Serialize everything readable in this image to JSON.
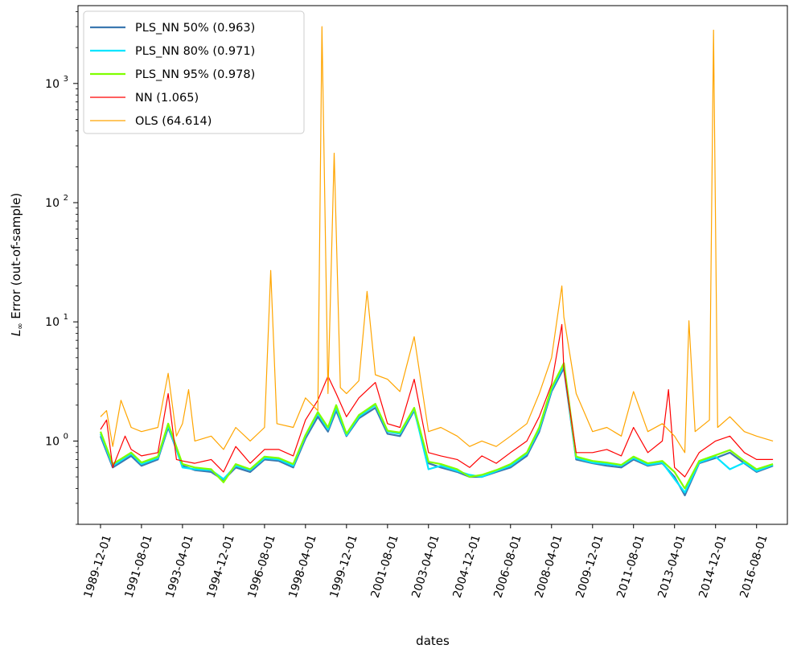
{
  "chart_data": {
    "type": "line",
    "title": "",
    "xlabel": "dates",
    "ylabel_prefix": "L",
    "ylabel_sub": "∞",
    "ylabel_rest": " Error (out-of-sample)",
    "yscale": "log",
    "ylim": [
      0.2,
      4500
    ],
    "xlim": [
      "1989-01-01",
      "2017-11-01"
    ],
    "x_ticks": [
      "1989-12-01",
      "1991-08-01",
      "1993-04-01",
      "1994-12-01",
      "1996-08-01",
      "1998-04-01",
      "1999-12-01",
      "2001-08-01",
      "2003-04-01",
      "2004-12-01",
      "2006-08-01",
      "2008-04-01",
      "2009-12-01",
      "2011-08-01",
      "2013-04-01",
      "2014-12-01",
      "2016-08-01"
    ],
    "y_ticks": [
      {
        "value": 1,
        "base": "10",
        "exp": "0"
      },
      {
        "value": 10,
        "base": "10",
        "exp": "1"
      },
      {
        "value": 100,
        "base": "10",
        "exp": "2"
      },
      {
        "value": 1000,
        "base": "10",
        "exp": "3"
      }
    ],
    "grid": false,
    "legend_position": "top-left",
    "series": [
      {
        "name": "PLS_NN 50% (0.963)",
        "color": "#3b78b0",
        "values": [
          [
            "1989-12-01",
            1.1
          ],
          [
            "1990-06-01",
            0.6
          ],
          [
            "1991-03-01",
            0.75
          ],
          [
            "1991-08-01",
            0.62
          ],
          [
            "1992-04-01",
            0.7
          ],
          [
            "1992-09-01",
            1.3
          ],
          [
            "1993-04-01",
            0.62
          ],
          [
            "1993-10-01",
            0.57
          ],
          [
            "1994-06-01",
            0.55
          ],
          [
            "1994-12-01",
            0.47
          ],
          [
            "1995-06-01",
            0.6
          ],
          [
            "1996-01-01",
            0.55
          ],
          [
            "1996-08-01",
            0.7
          ],
          [
            "1997-03-01",
            0.68
          ],
          [
            "1997-10-01",
            0.6
          ],
          [
            "1998-04-01",
            1.05
          ],
          [
            "1998-10-01",
            1.6
          ],
          [
            "1999-03-01",
            1.2
          ],
          [
            "1999-07-01",
            1.8
          ],
          [
            "1999-12-01",
            1.1
          ],
          [
            "2000-06-01",
            1.55
          ],
          [
            "2001-02-01",
            1.9
          ],
          [
            "2001-08-01",
            1.15
          ],
          [
            "2002-02-01",
            1.1
          ],
          [
            "2002-09-01",
            1.8
          ],
          [
            "2003-04-01",
            0.65
          ],
          [
            "2003-10-01",
            0.6
          ],
          [
            "2004-06-01",
            0.55
          ],
          [
            "2004-12-01",
            0.5
          ],
          [
            "2005-06-01",
            0.5
          ],
          [
            "2006-01-01",
            0.55
          ],
          [
            "2006-08-01",
            0.6
          ],
          [
            "2007-04-01",
            0.75
          ],
          [
            "2007-10-01",
            1.2
          ],
          [
            "2008-04-01",
            2.6
          ],
          [
            "2008-10-01",
            4.1
          ],
          [
            "2009-04-01",
            0.7
          ],
          [
            "2009-12-01",
            0.65
          ],
          [
            "2010-07-01",
            0.62
          ],
          [
            "2011-02-01",
            0.6
          ],
          [
            "2011-08-01",
            0.7
          ],
          [
            "2012-03-01",
            0.62
          ],
          [
            "2012-10-01",
            0.65
          ],
          [
            "2013-04-01",
            0.5
          ],
          [
            "2013-09-01",
            0.35
          ],
          [
            "2014-04-01",
            0.65
          ],
          [
            "2014-12-01",
            0.72
          ],
          [
            "2015-07-01",
            0.8
          ],
          [
            "2016-02-01",
            0.65
          ],
          [
            "2016-08-01",
            0.55
          ],
          [
            "2017-04-01",
            0.62
          ]
        ]
      },
      {
        "name": "PLS_NN 80% (0.971)",
        "color": "#00e5ff",
        "values": [
          [
            "1989-12-01",
            1.15
          ],
          [
            "1990-06-01",
            0.62
          ],
          [
            "1991-03-01",
            0.78
          ],
          [
            "1991-08-01",
            0.64
          ],
          [
            "1992-04-01",
            0.72
          ],
          [
            "1992-09-01",
            1.35
          ],
          [
            "1993-04-01",
            0.6
          ],
          [
            "1993-10-01",
            0.58
          ],
          [
            "1994-06-01",
            0.57
          ],
          [
            "1994-12-01",
            0.48
          ],
          [
            "1995-06-01",
            0.62
          ],
          [
            "1996-01-01",
            0.57
          ],
          [
            "1996-08-01",
            0.72
          ],
          [
            "1997-03-01",
            0.7
          ],
          [
            "1997-10-01",
            0.62
          ],
          [
            "1998-04-01",
            1.1
          ],
          [
            "1998-10-01",
            1.7
          ],
          [
            "1999-03-01",
            1.25
          ],
          [
            "1999-07-01",
            1.9
          ],
          [
            "1999-12-01",
            1.12
          ],
          [
            "2000-06-01",
            1.6
          ],
          [
            "2001-02-01",
            2.0
          ],
          [
            "2001-08-01",
            1.2
          ],
          [
            "2002-02-01",
            1.15
          ],
          [
            "2002-09-01",
            1.85
          ],
          [
            "2003-04-01",
            0.58
          ],
          [
            "2003-10-01",
            0.62
          ],
          [
            "2004-06-01",
            0.56
          ],
          [
            "2004-12-01",
            0.52
          ],
          [
            "2005-06-01",
            0.5
          ],
          [
            "2006-01-01",
            0.56
          ],
          [
            "2006-08-01",
            0.62
          ],
          [
            "2007-04-01",
            0.78
          ],
          [
            "2007-10-01",
            1.25
          ],
          [
            "2008-04-01",
            2.7
          ],
          [
            "2008-10-01",
            4.3
          ],
          [
            "2009-04-01",
            0.72
          ],
          [
            "2009-12-01",
            0.66
          ],
          [
            "2010-07-01",
            0.64
          ],
          [
            "2011-02-01",
            0.62
          ],
          [
            "2011-08-01",
            0.72
          ],
          [
            "2012-03-01",
            0.63
          ],
          [
            "2012-10-01",
            0.66
          ],
          [
            "2013-04-01",
            0.48
          ],
          [
            "2013-09-01",
            0.37
          ],
          [
            "2014-04-01",
            0.66
          ],
          [
            "2014-12-01",
            0.74
          ],
          [
            "2015-07-01",
            0.58
          ],
          [
            "2016-02-01",
            0.66
          ],
          [
            "2016-08-01",
            0.56
          ],
          [
            "2017-04-01",
            0.63
          ]
        ]
      },
      {
        "name": "PLS_NN 95% (0.978)",
        "color": "#7fff00",
        "values": [
          [
            "1989-12-01",
            1.2
          ],
          [
            "1990-06-01",
            0.64
          ],
          [
            "1991-03-01",
            0.8
          ],
          [
            "1991-08-01",
            0.66
          ],
          [
            "1992-04-01",
            0.74
          ],
          [
            "1992-09-01",
            1.4
          ],
          [
            "1993-04-01",
            0.64
          ],
          [
            "1993-10-01",
            0.6
          ],
          [
            "1994-06-01",
            0.58
          ],
          [
            "1994-12-01",
            0.45
          ],
          [
            "1995-06-01",
            0.64
          ],
          [
            "1996-01-01",
            0.58
          ],
          [
            "1996-08-01",
            0.74
          ],
          [
            "1997-03-01",
            0.72
          ],
          [
            "1997-10-01",
            0.64
          ],
          [
            "1998-04-01",
            1.12
          ],
          [
            "1998-10-01",
            1.75
          ],
          [
            "1999-03-01",
            1.3
          ],
          [
            "1999-07-01",
            2.0
          ],
          [
            "1999-12-01",
            1.15
          ],
          [
            "2000-06-01",
            1.65
          ],
          [
            "2001-02-01",
            2.05
          ],
          [
            "2001-08-01",
            1.22
          ],
          [
            "2002-02-01",
            1.18
          ],
          [
            "2002-09-01",
            1.9
          ],
          [
            "2003-04-01",
            0.67
          ],
          [
            "2003-10-01",
            0.64
          ],
          [
            "2004-06-01",
            0.58
          ],
          [
            "2004-12-01",
            0.5
          ],
          [
            "2005-06-01",
            0.52
          ],
          [
            "2006-01-01",
            0.57
          ],
          [
            "2006-08-01",
            0.64
          ],
          [
            "2007-04-01",
            0.8
          ],
          [
            "2007-10-01",
            1.3
          ],
          [
            "2008-04-01",
            2.8
          ],
          [
            "2008-10-01",
            4.5
          ],
          [
            "2009-04-01",
            0.74
          ],
          [
            "2009-12-01",
            0.68
          ],
          [
            "2010-07-01",
            0.66
          ],
          [
            "2011-02-01",
            0.63
          ],
          [
            "2011-08-01",
            0.74
          ],
          [
            "2012-03-01",
            0.65
          ],
          [
            "2012-10-01",
            0.68
          ],
          [
            "2013-04-01",
            0.55
          ],
          [
            "2013-09-01",
            0.4
          ],
          [
            "2014-04-01",
            0.68
          ],
          [
            "2014-12-01",
            0.76
          ],
          [
            "2015-07-01",
            0.84
          ],
          [
            "2016-02-01",
            0.68
          ],
          [
            "2016-08-01",
            0.58
          ],
          [
            "2017-04-01",
            0.64
          ]
        ]
      },
      {
        "name": "NN (1.065)",
        "color": "#ff0000",
        "values": [
          [
            "1989-12-01",
            1.25
          ],
          [
            "1990-03-01",
            1.5
          ],
          [
            "1990-06-01",
            0.6
          ],
          [
            "1990-12-01",
            1.1
          ],
          [
            "1991-03-01",
            0.85
          ],
          [
            "1991-08-01",
            0.75
          ],
          [
            "1992-04-01",
            0.8
          ],
          [
            "1992-09-01",
            2.5
          ],
          [
            "1993-01-01",
            0.7
          ],
          [
            "1993-04-01",
            0.68
          ],
          [
            "1993-10-01",
            0.65
          ],
          [
            "1994-06-01",
            0.7
          ],
          [
            "1994-12-01",
            0.55
          ],
          [
            "1995-06-01",
            0.9
          ],
          [
            "1996-01-01",
            0.65
          ],
          [
            "1996-08-01",
            0.85
          ],
          [
            "1997-03-01",
            0.85
          ],
          [
            "1997-10-01",
            0.75
          ],
          [
            "1998-04-01",
            1.5
          ],
          [
            "1998-10-01",
            2.2
          ],
          [
            "1999-03-01",
            3.5
          ],
          [
            "1999-07-01",
            2.5
          ],
          [
            "1999-12-01",
            1.6
          ],
          [
            "2000-06-01",
            2.3
          ],
          [
            "2001-02-01",
            3.1
          ],
          [
            "2001-08-01",
            1.4
          ],
          [
            "2002-02-01",
            1.3
          ],
          [
            "2002-09-01",
            3.3
          ],
          [
            "2003-04-01",
            0.8
          ],
          [
            "2003-10-01",
            0.75
          ],
          [
            "2004-06-01",
            0.7
          ],
          [
            "2004-12-01",
            0.6
          ],
          [
            "2005-06-01",
            0.75
          ],
          [
            "2006-01-01",
            0.65
          ],
          [
            "2006-08-01",
            0.8
          ],
          [
            "2007-04-01",
            1.0
          ],
          [
            "2007-10-01",
            1.6
          ],
          [
            "2008-04-01",
            3.0
          ],
          [
            "2008-09-01",
            9.5
          ],
          [
            "2008-10-01",
            4.0
          ],
          [
            "2009-04-01",
            0.8
          ],
          [
            "2009-12-01",
            0.8
          ],
          [
            "2010-07-01",
            0.85
          ],
          [
            "2011-02-01",
            0.75
          ],
          [
            "2011-08-01",
            1.3
          ],
          [
            "2012-03-01",
            0.8
          ],
          [
            "2012-10-01",
            1.0
          ],
          [
            "2013-01-01",
            2.7
          ],
          [
            "2013-04-01",
            0.6
          ],
          [
            "2013-09-01",
            0.5
          ],
          [
            "2014-04-01",
            0.8
          ],
          [
            "2014-12-01",
            1.0
          ],
          [
            "2015-07-01",
            1.1
          ],
          [
            "2016-02-01",
            0.8
          ],
          [
            "2016-08-01",
            0.7
          ],
          [
            "2017-04-01",
            0.7
          ]
        ]
      },
      {
        "name": "OLS (64.614)",
        "color": "#ffa500",
        "values": [
          [
            "1989-12-01",
            1.6
          ],
          [
            "1990-03-01",
            1.8
          ],
          [
            "1990-06-01",
            0.9
          ],
          [
            "1990-10-01",
            2.2
          ],
          [
            "1991-03-01",
            1.3
          ],
          [
            "1991-08-01",
            1.2
          ],
          [
            "1992-04-01",
            1.3
          ],
          [
            "1992-09-01",
            3.7
          ],
          [
            "1993-01-01",
            1.1
          ],
          [
            "1993-04-01",
            1.4
          ],
          [
            "1993-07-01",
            2.7
          ],
          [
            "1993-10-01",
            1.0
          ],
          [
            "1994-06-01",
            1.1
          ],
          [
            "1994-12-01",
            0.85
          ],
          [
            "1995-06-01",
            1.3
          ],
          [
            "1996-01-01",
            1.0
          ],
          [
            "1996-08-01",
            1.3
          ],
          [
            "1996-11-01",
            27
          ],
          [
            "1997-02-01",
            1.4
          ],
          [
            "1997-10-01",
            1.3
          ],
          [
            "1998-04-01",
            2.3
          ],
          [
            "1998-10-01",
            1.8
          ],
          [
            "1998-12-01",
            3000
          ],
          [
            "1999-03-01",
            2.5
          ],
          [
            "1999-06-01",
            260
          ],
          [
            "1999-09-01",
            2.8
          ],
          [
            "1999-12-01",
            2.5
          ],
          [
            "2000-06-01",
            3.2
          ],
          [
            "2000-10-01",
            18
          ],
          [
            "2001-02-01",
            3.6
          ],
          [
            "2001-08-01",
            3.3
          ],
          [
            "2002-02-01",
            2.6
          ],
          [
            "2002-09-01",
            7.5
          ],
          [
            "2003-04-01",
            1.2
          ],
          [
            "2003-10-01",
            1.3
          ],
          [
            "2004-06-01",
            1.1
          ],
          [
            "2004-12-01",
            0.9
          ],
          [
            "2005-06-01",
            1.0
          ],
          [
            "2006-01-01",
            0.9
          ],
          [
            "2006-08-01",
            1.1
          ],
          [
            "2007-04-01",
            1.4
          ],
          [
            "2007-10-01",
            2.5
          ],
          [
            "2008-04-01",
            5.0
          ],
          [
            "2008-09-01",
            20
          ],
          [
            "2008-10-01",
            11
          ],
          [
            "2009-04-01",
            2.5
          ],
          [
            "2009-12-01",
            1.2
          ],
          [
            "2010-07-01",
            1.3
          ],
          [
            "2011-02-01",
            1.1
          ],
          [
            "2011-08-01",
            2.6
          ],
          [
            "2012-03-01",
            1.2
          ],
          [
            "2012-10-01",
            1.4
          ],
          [
            "2013-04-01",
            1.1
          ],
          [
            "2013-09-01",
            0.8
          ],
          [
            "2013-11-01",
            10.2
          ],
          [
            "2014-02-01",
            1.2
          ],
          [
            "2014-09-01",
            1.5
          ],
          [
            "2014-11-01",
            2800
          ],
          [
            "2015-01-01",
            1.3
          ],
          [
            "2015-07-01",
            1.6
          ],
          [
            "2016-02-01",
            1.2
          ],
          [
            "2016-08-01",
            1.1
          ],
          [
            "2017-04-01",
            1.0
          ]
        ]
      }
    ]
  }
}
